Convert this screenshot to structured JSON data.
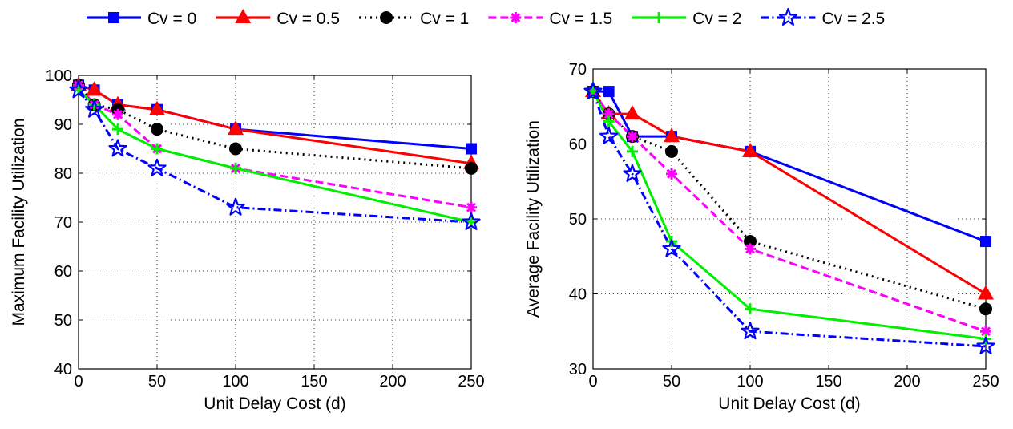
{
  "legend": {
    "placement": "top",
    "entries": [
      {
        "label": "Cv = 0",
        "color": "#0000ff",
        "dash": "solid",
        "marker": "square"
      },
      {
        "label": "Cv = 0.5",
        "color": "#ff0000",
        "dash": "solid",
        "marker": "triangle"
      },
      {
        "label": "Cv = 1",
        "color": "#000000",
        "dash": "dotted",
        "marker": "circle"
      },
      {
        "label": "Cv = 1.5",
        "color": "#ff00ff",
        "dash": "dashed",
        "marker": "asterisk"
      },
      {
        "label": "Cv = 2",
        "color": "#00ee00",
        "dash": "solid",
        "marker": "plus"
      },
      {
        "label": "Cv = 2.5",
        "color": "#0000ff",
        "dash": "dashdot",
        "marker": "star"
      }
    ]
  },
  "chart_data": [
    {
      "type": "line",
      "xlabel": "Unit Delay Cost (d)",
      "ylabel": "Maximum Facility Utilization",
      "xlim": [
        0,
        250
      ],
      "ylim": [
        40,
        100
      ],
      "xticks": [
        0,
        50,
        100,
        150,
        200,
        250
      ],
      "yticks": [
        40,
        50,
        60,
        70,
        80,
        90,
        100
      ],
      "grid": true,
      "x": [
        0,
        10,
        25,
        50,
        100,
        250
      ],
      "series": [
        {
          "name": "Cv = 0",
          "values": [
            98,
            97,
            94,
            93,
            89,
            85
          ]
        },
        {
          "name": "Cv = 0.5",
          "values": [
            98,
            97,
            94,
            93,
            89,
            82
          ]
        },
        {
          "name": "Cv = 1",
          "values": [
            98,
            94,
            93,
            89,
            85,
            81
          ]
        },
        {
          "name": "Cv = 1.5",
          "values": [
            98,
            94,
            92,
            85,
            81,
            73
          ]
        },
        {
          "name": "Cv = 2",
          "values": [
            97,
            94,
            89,
            85,
            81,
            70
          ]
        },
        {
          "name": "Cv = 2.5",
          "values": [
            97,
            93,
            85,
            81,
            73,
            70
          ]
        }
      ]
    },
    {
      "type": "line",
      "xlabel": "Unit Delay Cost (d)",
      "ylabel": "Average Facility Utilization",
      "xlim": [
        0,
        250
      ],
      "ylim": [
        30,
        70
      ],
      "xticks": [
        0,
        50,
        100,
        150,
        200,
        250
      ],
      "yticks": [
        30,
        40,
        50,
        60,
        70
      ],
      "grid": true,
      "x": [
        0,
        10,
        25,
        50,
        100,
        250
      ],
      "series": [
        {
          "name": "Cv = 0",
          "values": [
            67,
            67,
            61,
            61,
            59,
            47
          ]
        },
        {
          "name": "Cv = 0.5",
          "values": [
            67,
            64,
            64,
            61,
            59,
            40
          ]
        },
        {
          "name": "Cv = 1",
          "values": [
            67,
            64,
            61,
            59,
            47,
            38
          ]
        },
        {
          "name": "Cv = 1.5",
          "values": [
            67,
            64,
            61,
            56,
            46,
            35
          ]
        },
        {
          "name": "Cv = 2",
          "values": [
            67,
            63,
            59,
            47,
            38,
            34
          ]
        },
        {
          "name": "Cv = 2.5",
          "values": [
            67,
            61,
            56,
            46,
            35,
            33
          ]
        }
      ]
    }
  ]
}
